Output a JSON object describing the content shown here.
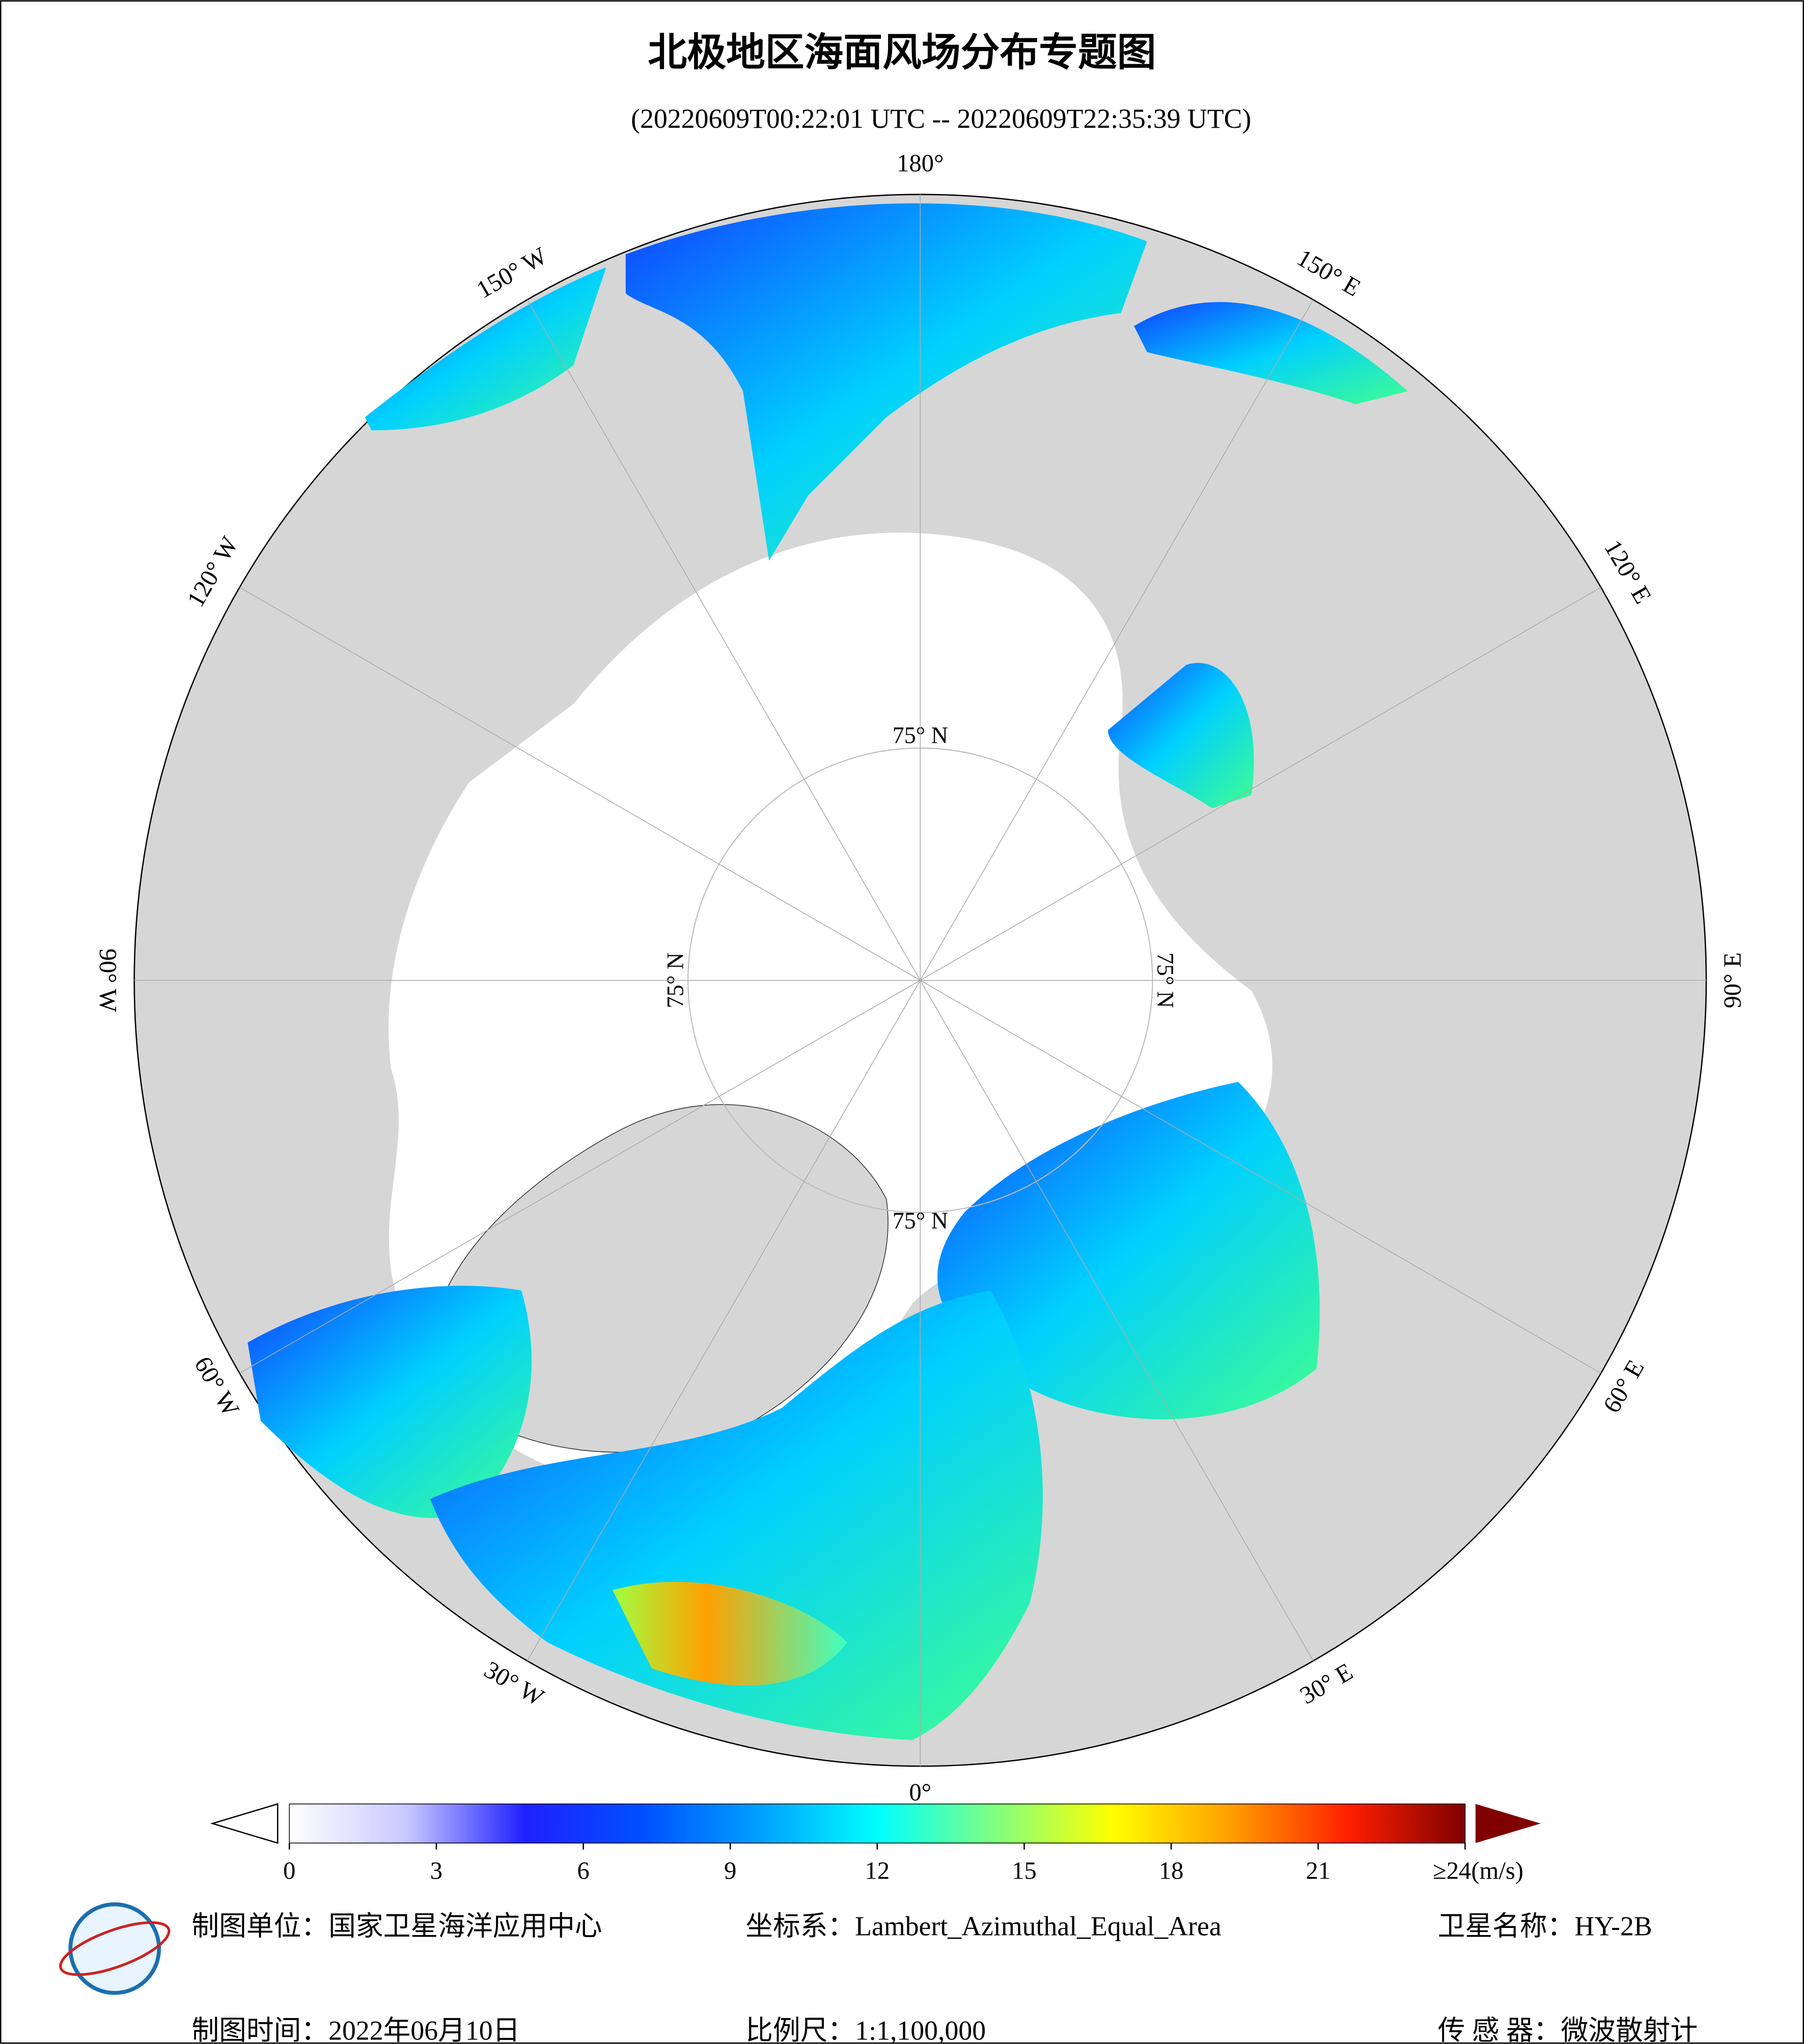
{
  "header": {
    "title": "北极地区海面风场分布专题图",
    "subtitle": "(20220609T00:22:01 UTC -- 20220609T22:35:39 UTC)"
  },
  "map": {
    "longitudes": [
      {
        "value": 180,
        "label": "180°"
      },
      {
        "value": -150,
        "label": "150° W"
      },
      {
        "value": -120,
        "label": "120° W"
      },
      {
        "value": -90,
        "label": "90° W"
      },
      {
        "value": -60,
        "label": "60° W"
      },
      {
        "value": -30,
        "label": "30° W"
      },
      {
        "value": 0,
        "label": "0°"
      },
      {
        "value": 30,
        "label": "30° E"
      },
      {
        "value": 60,
        "label": "60° E"
      },
      {
        "value": 90,
        "label": "90° E"
      },
      {
        "value": 120,
        "label": "120° E"
      },
      {
        "value": 150,
        "label": "150° E"
      }
    ],
    "latitude": {
      "value": 75,
      "label": "75° N"
    }
  },
  "colorbar": {
    "lim": [
      0,
      24
    ],
    "ticks": [
      0,
      3,
      6,
      9,
      12,
      15,
      18,
      21,
      {
        "value": 24,
        "label": "≥24(m/s)"
      }
    ],
    "colors": [
      "#ffffff",
      "#c8c8ff",
      "#2020ff",
      "#0050ff",
      "#00a0ff",
      "#00ffff",
      "#80ff80",
      "#ffff00",
      "#ffa000",
      "#ff2000",
      "#800000"
    ]
  },
  "footer": {
    "unit": "制图单位：国家卫星海洋应用中心",
    "crs": "坐标系：Lambert_Azimuthal_Equal_Area",
    "satellite": "卫星名称：HY-2B",
    "date": "制图时间：2022年06月10日",
    "scale": "比例尺：1:1,100,000",
    "sensor": "传 感 器：微波散射计"
  }
}
